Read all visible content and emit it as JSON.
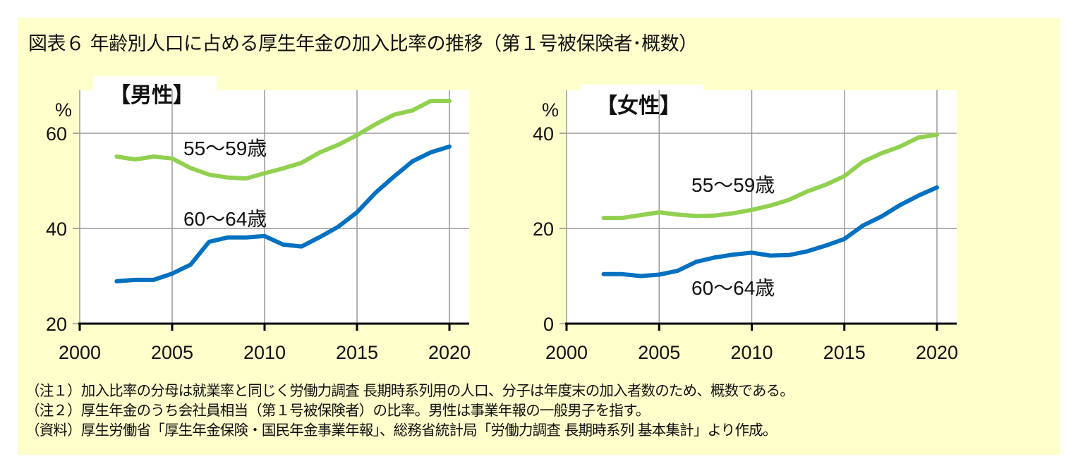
{
  "title": "図表６ 年齢別人口に占める厚生年金の加入比率の推移（第１号被保険者･概数）",
  "notes": [
    "（注１）加入比率の分母は就業率と同じく労働力調査 長期時系列用の人口、分子は年度末の加入者数のため、概数である。",
    "（注２）厚生年金のうち会社員相当（第１号被保険者）の比率。男性は事業年報の一般男子を指す。",
    "（資料）厚生労働省「厚生年金保険・国民年金事業年報」、総務省統計局「労働力調査 長期時系列 基本集計」より作成。"
  ],
  "colors": {
    "55-59": "#92d050",
    "60-64": "#0070c0",
    "background": "#ffffcc"
  },
  "chart_data": [
    {
      "type": "line",
      "title": "【男性】",
      "ylabel": "%",
      "ylim": [
        20,
        70
      ],
      "yticks": [
        20,
        40,
        60
      ],
      "xlim": [
        2000,
        2020
      ],
      "xticks": [
        2000,
        2005,
        2010,
        2015,
        2020
      ],
      "grid": true,
      "x": [
        2002,
        2003,
        2004,
        2005,
        2006,
        2007,
        2008,
        2009,
        2010,
        2011,
        2012,
        2013,
        2014,
        2015,
        2016,
        2017,
        2018,
        2019,
        2020
      ],
      "series": [
        {
          "name": "55〜59歳",
          "values": [
            55.1,
            54.5,
            55.1,
            54.7,
            52.7,
            51.3,
            50.7,
            50.5,
            51.6,
            52.6,
            53.8,
            56.0,
            57.6,
            59.6,
            61.9,
            63.9,
            64.8,
            66.8,
            66.8
          ]
        },
        {
          "name": "60〜64歳",
          "values": [
            28.9,
            29.2,
            29.2,
            30.5,
            32.4,
            37.2,
            38.1,
            38.1,
            38.4,
            36.6,
            36.2,
            38.2,
            40.4,
            43.4,
            47.5,
            50.9,
            54.1,
            56.0,
            57.2
          ]
        }
      ]
    },
    {
      "type": "line",
      "title": "【女性】",
      "ylabel": "%",
      "ylim": [
        0,
        50
      ],
      "yticks": [
        0,
        20,
        40
      ],
      "xlim": [
        2000,
        2020
      ],
      "xticks": [
        2000,
        2005,
        2010,
        2015,
        2020
      ],
      "grid": true,
      "x": [
        2002,
        2003,
        2004,
        2005,
        2006,
        2007,
        2008,
        2009,
        2010,
        2011,
        2012,
        2013,
        2014,
        2015,
        2016,
        2017,
        2018,
        2019,
        2020
      ],
      "series": [
        {
          "name": "55〜59歳",
          "values": [
            22.2,
            22.2,
            22.8,
            23.4,
            22.9,
            22.6,
            22.7,
            23.2,
            23.9,
            24.8,
            26.0,
            27.8,
            29.2,
            31.0,
            34.0,
            35.8,
            37.2,
            39.1,
            39.7
          ]
        },
        {
          "name": "60〜64歳",
          "values": [
            10.4,
            10.4,
            10.0,
            10.3,
            11.1,
            13.0,
            13.9,
            14.5,
            14.9,
            14.3,
            14.4,
            15.2,
            16.4,
            17.8,
            20.6,
            22.5,
            24.9,
            26.9,
            28.6
          ]
        }
      ]
    }
  ]
}
